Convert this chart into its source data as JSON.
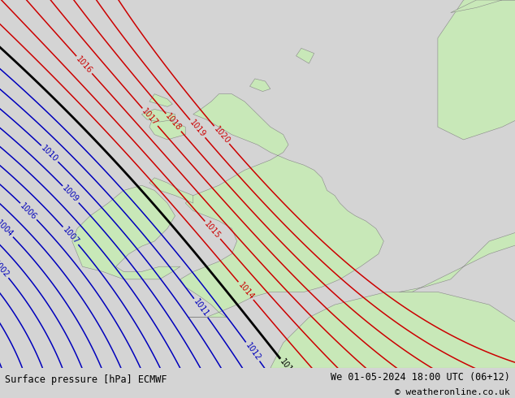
{
  "title_left": "Surface pressure [hPa] ECMWF",
  "title_right": "We 01-05-2024 18:00 UTC (06+12)",
  "copyright": "© weatheronline.co.uk",
  "bg_color": "#d4d4d4",
  "land_color": "#c8e8b8",
  "sea_color": "#d4d4d4",
  "figsize": [
    6.34,
    4.9
  ],
  "dpi": 100,
  "blue_contour_color": "#0000bb",
  "red_contour_color": "#cc0000",
  "black_contour_color": "#000000",
  "contour_linewidth_blue": 1.1,
  "contour_linewidth_red": 1.1,
  "contour_linewidth_black": 2.0,
  "label_fontsize": 7,
  "bottom_bar_color": "#bbbbbb",
  "bottom_bar_height": 0.075,
  "title_fontsize": 8.5,
  "copyright_fontsize": 8.0,
  "lon_min": -13,
  "lon_max": 7,
  "lat_min": 48.0,
  "lat_max": 62.5
}
